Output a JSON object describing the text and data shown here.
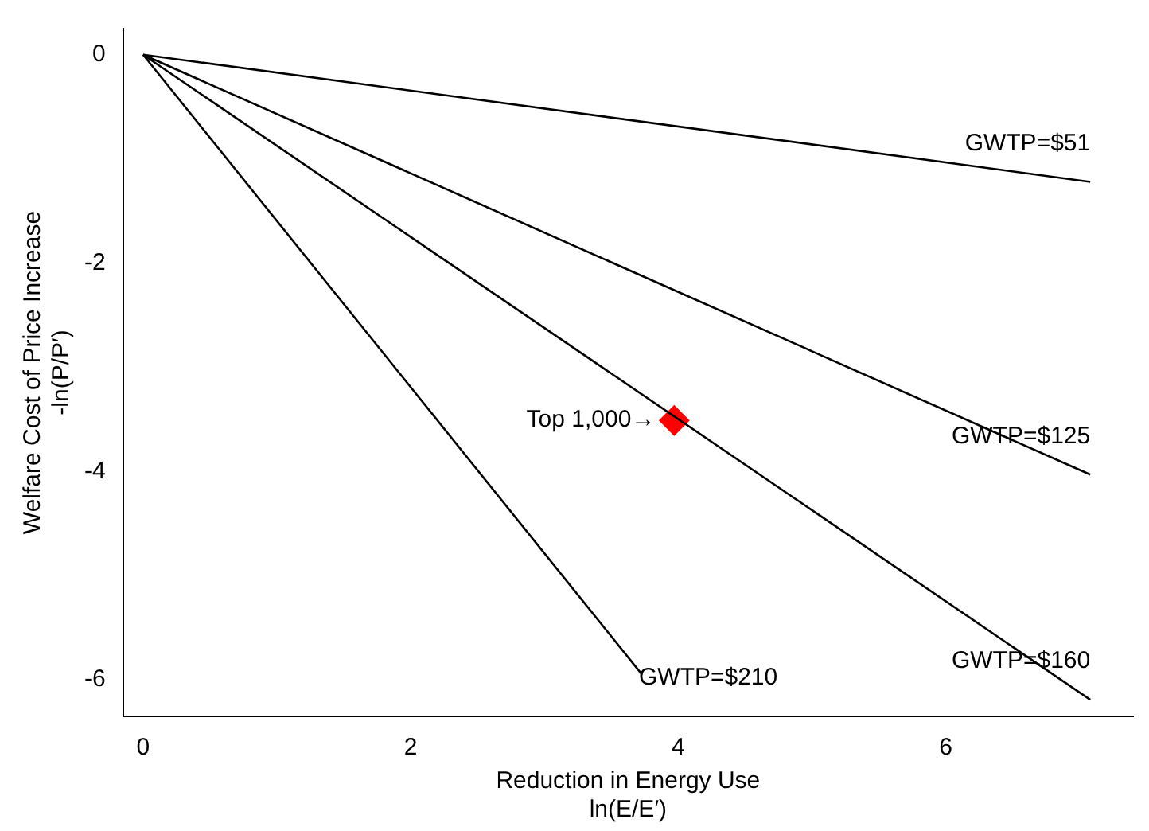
{
  "chart_data": {
    "type": "line",
    "xlabel": "Reduction in Energy Use\nln(E/E′)",
    "ylabel": "Welfare Cost of Price Increase\n-ln(P/P′)",
    "xlim": [
      -0.15,
      7.4
    ],
    "xticks": [
      0,
      2,
      4,
      6
    ],
    "ylim": [
      -6.35,
      0.25
    ],
    "yticks": [
      0,
      -2,
      -4,
      -6
    ],
    "grid": false,
    "legend": false,
    "marker": "none",
    "series": [
      {
        "name": "GWTP=$51",
        "color": "#000000",
        "x": [
          0,
          7.08
        ],
        "values": [
          0,
          -1.22
        ]
      },
      {
        "name": "GWTP=$125",
        "color": "#000000",
        "x": [
          0,
          7.08
        ],
        "values": [
          0,
          -4.03
        ]
      },
      {
        "name": "GWTP=$160",
        "color": "#000000",
        "x": [
          0,
          7.08
        ],
        "values": [
          0,
          -6.19
        ]
      },
      {
        "name": "GWTP=$210",
        "color": "#000000",
        "x": [
          0,
          3.73
        ],
        "values": [
          0,
          -5.95
        ]
      },
      {
        "type": "scatter",
        "marker": "diamond",
        "color": "#ff0000",
        "x": [
          3.97
        ],
        "values": [
          -3.51
        ]
      }
    ],
    "annotations": [
      {
        "text": "Top 1,000→",
        "x": 3.97,
        "y": -3.51
      }
    ]
  }
}
